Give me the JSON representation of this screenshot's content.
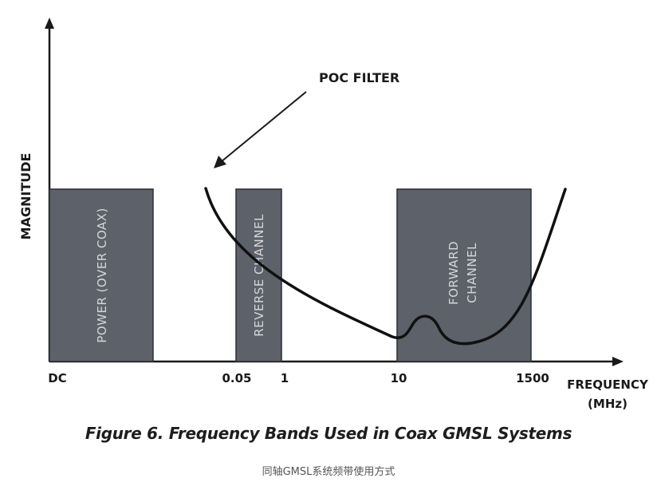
{
  "diagram": {
    "y_axis_label": "MAGNITUDE",
    "x_axis_label_line1": "FREQUENCY",
    "x_axis_label_line2": "(MHz)",
    "ticks": [
      "DC",
      "0.05",
      "1",
      "10",
      "1500"
    ],
    "bands": [
      {
        "label": "POWER (OVER COAX)"
      },
      {
        "label": "REVERSE CHANNEL"
      },
      {
        "label_line1": "FORWARD",
        "label_line2": "CHANNEL"
      }
    ],
    "annotation": "POC FILTER",
    "colors": {
      "band_fill": "#5d6169",
      "band_text": "#d4d6da",
      "axis": "#1a1a1a"
    }
  },
  "captions": {
    "figure": "Figure 6. Frequency Bands Used in Coax GMSL Systems",
    "chinese": "同轴GMSL系统频带使用方式"
  }
}
